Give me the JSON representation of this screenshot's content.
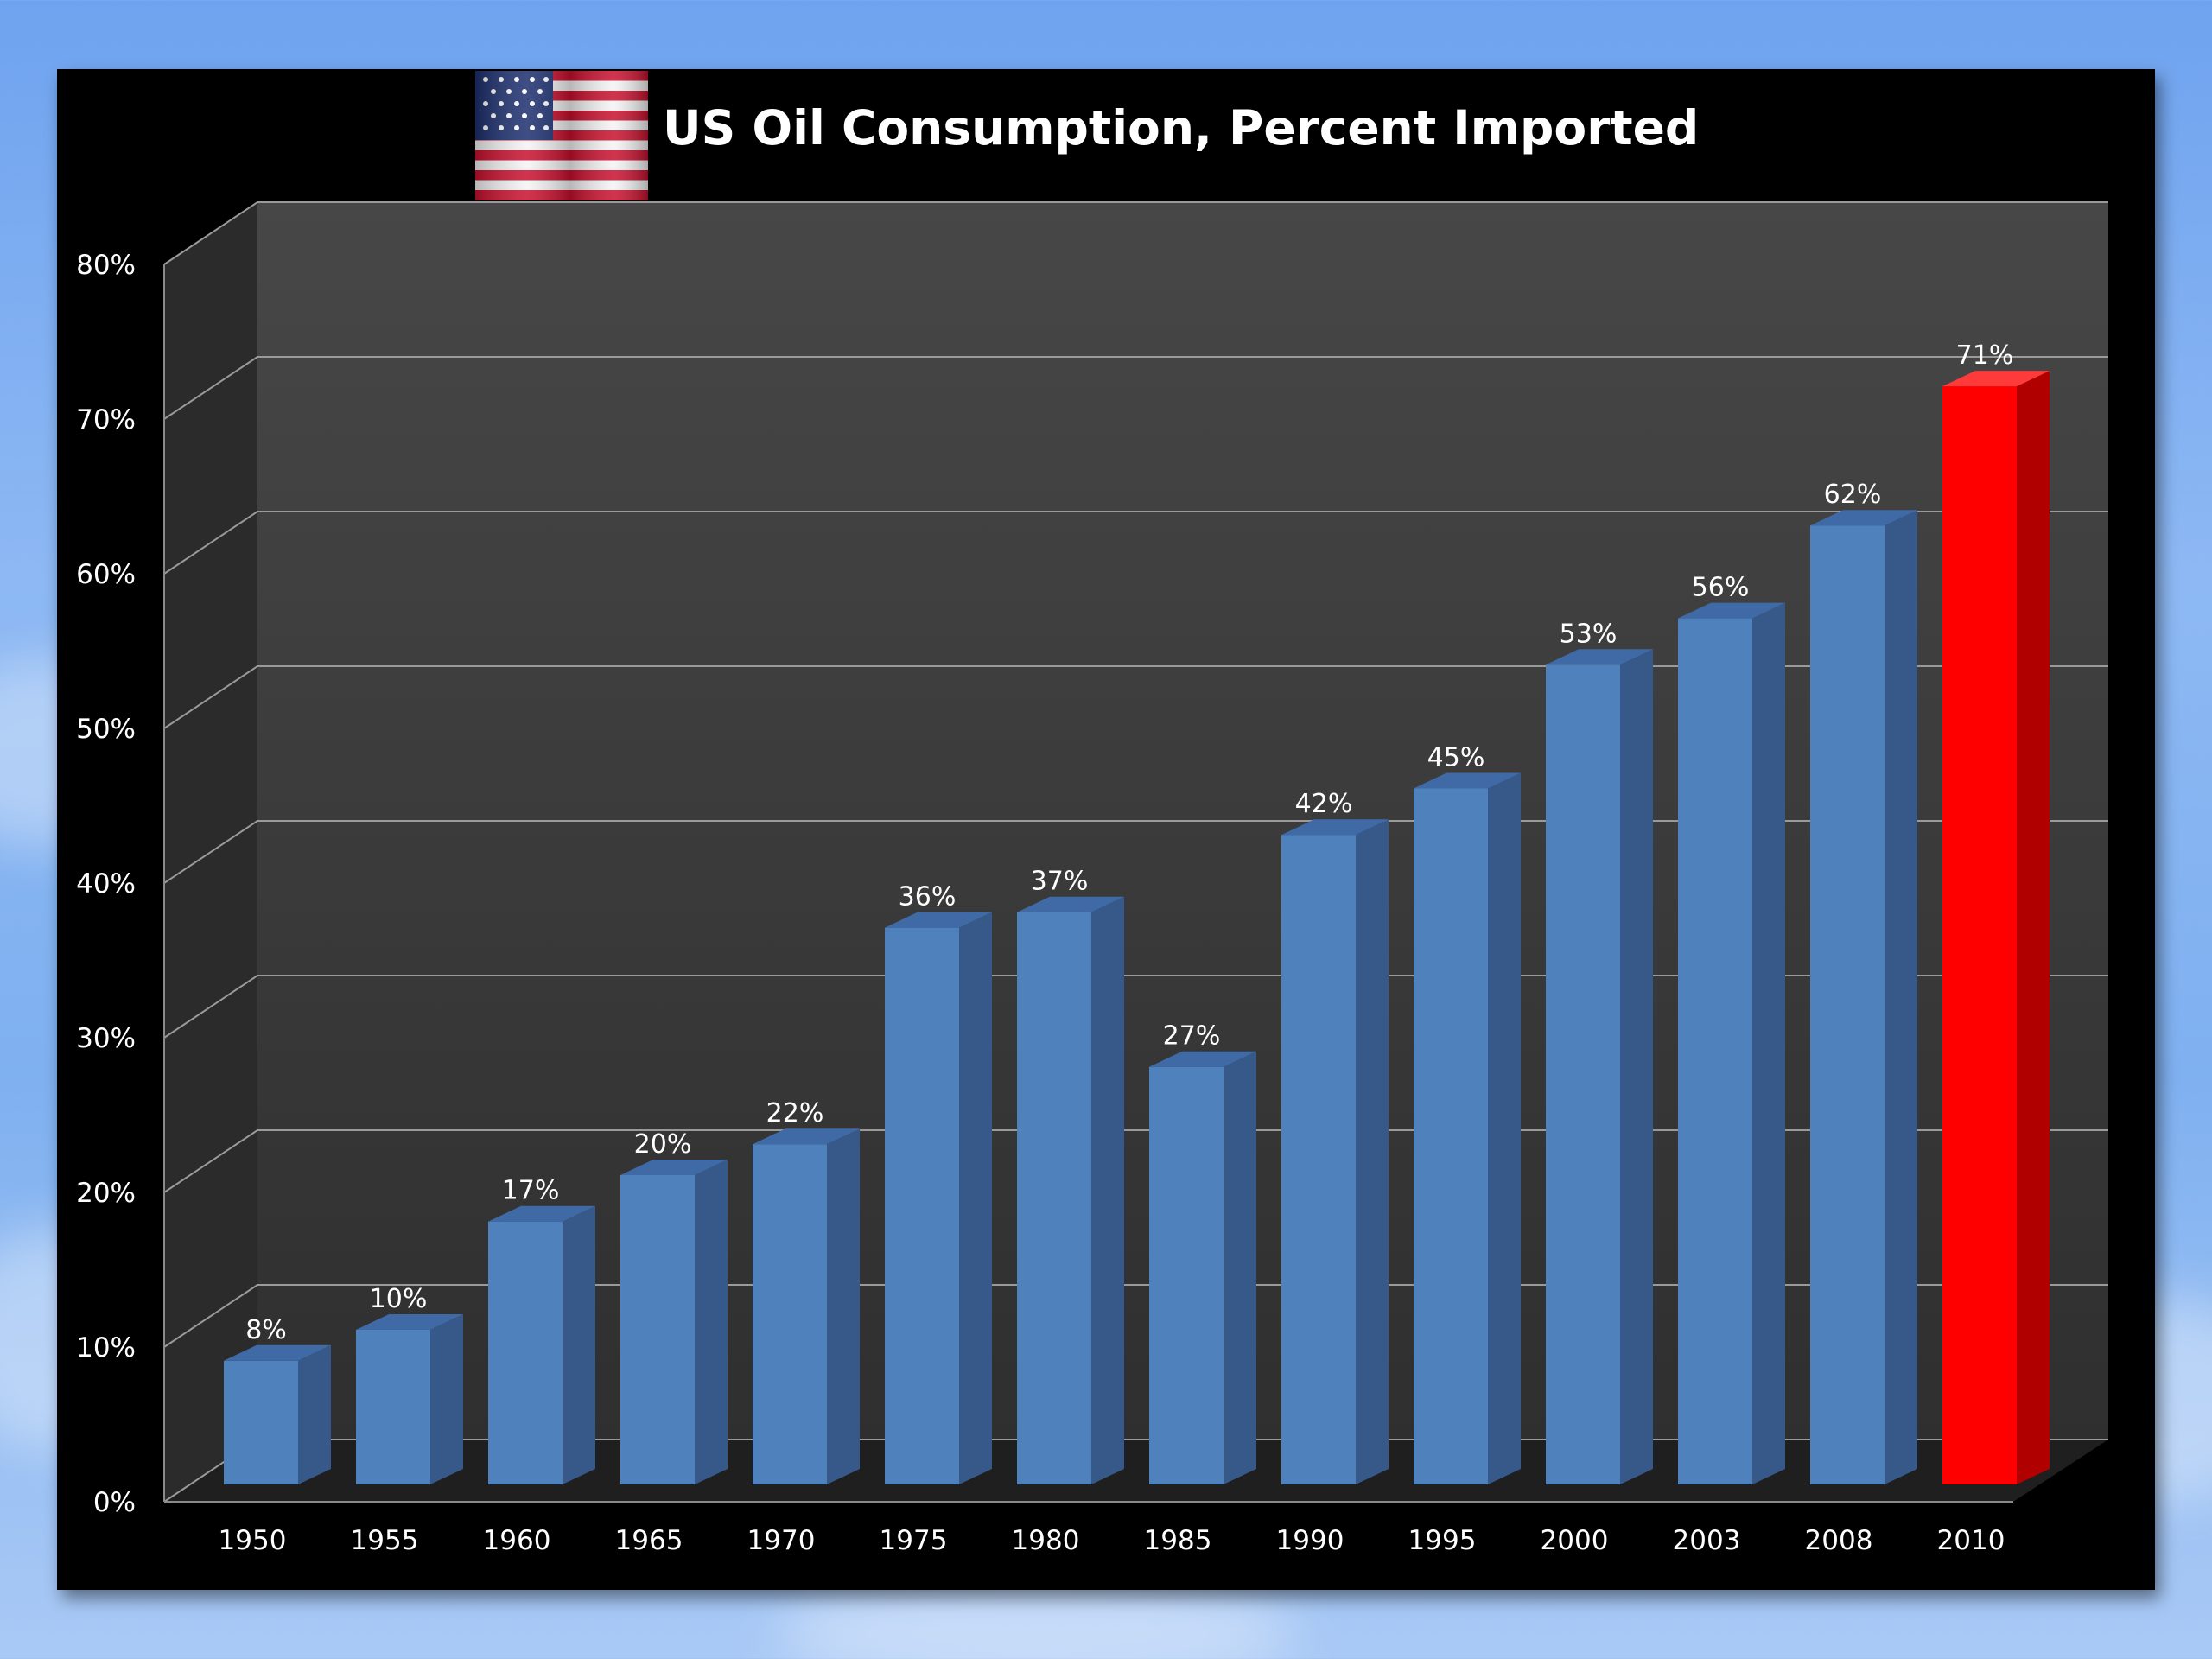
{
  "chart_data": {
    "type": "bar",
    "title": "US Oil Consumption, Percent Imported",
    "categories": [
      "1950",
      "1955",
      "1960",
      "1965",
      "1970",
      "1975",
      "1980",
      "1985",
      "1990",
      "1995",
      "2000",
      "2003",
      "2008",
      "2010"
    ],
    "values": [
      8,
      10,
      17,
      20,
      22,
      36,
      37,
      27,
      42,
      45,
      53,
      56,
      62,
      71
    ],
    "data_labels": [
      "8%",
      "10%",
      "17%",
      "20%",
      "22%",
      "36%",
      "37%",
      "27%",
      "42%",
      "45%",
      "53%",
      "56%",
      "62%",
      "71%"
    ],
    "ylim": [
      0,
      80
    ],
    "y_ticks": [
      "0%",
      "10%",
      "20%",
      "30%",
      "40%",
      "50%",
      "60%",
      "70%",
      "80%"
    ],
    "xlabel": "",
    "ylabel": "",
    "grid": true,
    "style": "3d-column",
    "colors": {
      "bar": "#4f81bd",
      "highlight_bar": "#ff0000",
      "plot_background": "#3c3c3c",
      "gridline": "#9a9a9a"
    },
    "highlight_category": "2010"
  },
  "decor": {
    "flag": "us-flag-icon"
  }
}
